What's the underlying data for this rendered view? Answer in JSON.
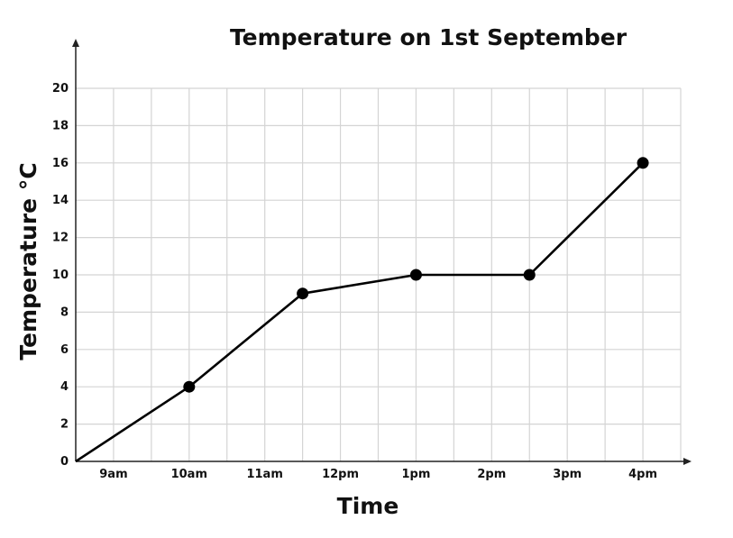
{
  "chart_data": {
    "type": "line",
    "title": "Temperature on 1st September",
    "xlabel": "Time",
    "ylabel": "Temperature °C",
    "x_ticks": [
      "9am",
      "10am",
      "11am",
      "12pm",
      "1pm",
      "2pm",
      "3pm",
      "4pm"
    ],
    "y_ticks": [
      0,
      2,
      4,
      6,
      8,
      10,
      12,
      14,
      16,
      18,
      20
    ],
    "xlim": [
      "8:30am",
      "4:30pm"
    ],
    "ylim": [
      0,
      20
    ],
    "grid": true,
    "series": [
      {
        "points": [
          {
            "x": "8:30am",
            "y": 0
          },
          {
            "x": "10am",
            "y": 4
          },
          {
            "x": "11:30am",
            "y": 9
          },
          {
            "x": "1pm",
            "y": 10
          },
          {
            "x": "2:30pm",
            "y": 10
          },
          {
            "x": "4pm",
            "y": 16
          }
        ],
        "markers": [
          false,
          true,
          true,
          true,
          true,
          true
        ]
      }
    ],
    "colors": {
      "line": "#000000",
      "grid": "#d4d4d4",
      "axis": "#222222"
    }
  }
}
